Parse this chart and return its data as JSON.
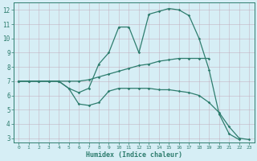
{
  "xlabel": "Humidex (Indice chaleur)",
  "bg_color": "#d6eef5",
  "line_color": "#2e7d6e",
  "x_top": [
    0,
    1,
    2,
    3,
    4,
    5,
    6,
    7,
    8,
    9,
    10,
    11,
    12,
    13,
    14,
    15,
    16,
    17,
    18,
    19,
    20,
    21,
    22,
    23
  ],
  "y_top": [
    7.0,
    7.0,
    7.0,
    7.0,
    7.0,
    6.5,
    6.2,
    6.5,
    8.2,
    9.0,
    10.8,
    10.8,
    9.0,
    11.7,
    11.9,
    12.1,
    12.0,
    11.6,
    10.0,
    7.8,
    4.7,
    3.3,
    2.9,
    null
  ],
  "x_mid": [
    0,
    1,
    2,
    3,
    4,
    5,
    6,
    7,
    8,
    9,
    10,
    11,
    12,
    13,
    14,
    15,
    16,
    17,
    18,
    19,
    20,
    21,
    22,
    23
  ],
  "y_mid": [
    7.0,
    7.0,
    7.0,
    7.0,
    7.0,
    7.0,
    7.0,
    7.1,
    7.3,
    7.5,
    7.7,
    7.9,
    8.1,
    8.2,
    8.4,
    8.5,
    8.6,
    8.6,
    8.6,
    8.6,
    null,
    null,
    null,
    null
  ],
  "x_bot": [
    0,
    1,
    2,
    3,
    4,
    5,
    6,
    7,
    8,
    9,
    10,
    11,
    12,
    13,
    14,
    15,
    16,
    17,
    18,
    19,
    20,
    21,
    22,
    23
  ],
  "y_bot": [
    7.0,
    7.0,
    7.0,
    7.0,
    7.0,
    6.5,
    5.4,
    5.3,
    5.5,
    6.3,
    6.5,
    6.5,
    6.5,
    6.5,
    6.4,
    6.4,
    6.3,
    6.2,
    6.0,
    5.5,
    4.8,
    3.8,
    3.0,
    2.9
  ],
  "ylim": [
    2.7,
    12.5
  ],
  "xlim": [
    -0.5,
    23.5
  ],
  "yticks": [
    3,
    4,
    5,
    6,
    7,
    8,
    9,
    10,
    11,
    12
  ],
  "xticks": [
    0,
    1,
    2,
    3,
    4,
    5,
    6,
    7,
    8,
    9,
    10,
    11,
    12,
    13,
    14,
    15,
    16,
    17,
    18,
    19,
    20,
    21,
    22,
    23
  ]
}
